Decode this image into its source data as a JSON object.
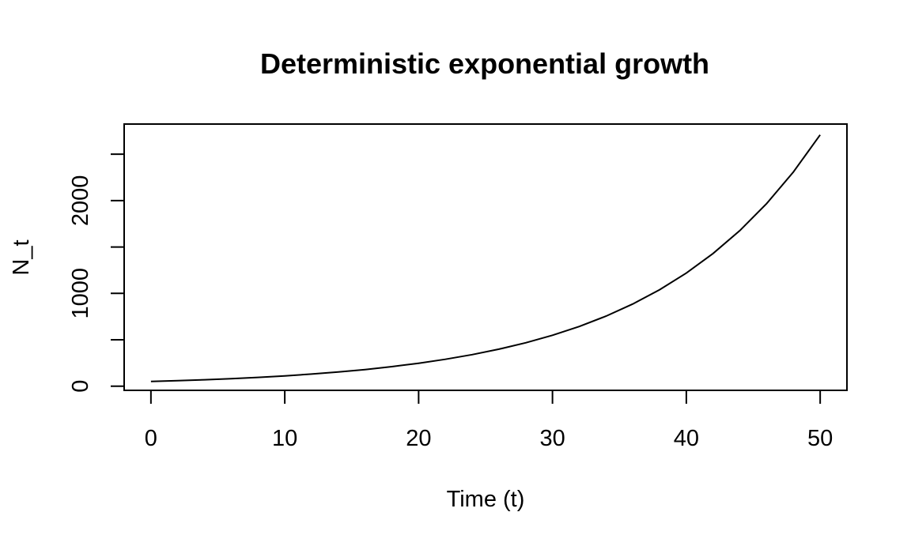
{
  "chart_data": {
    "type": "line",
    "title": "Deterministic exponential growth",
    "xlabel": "Time (t)",
    "ylabel": "N_t",
    "xlim": [
      -2,
      52
    ],
    "ylim": [
      -45,
      2825
    ],
    "x_ticks": [
      0,
      10,
      20,
      30,
      40,
      50
    ],
    "x_tick_labels": [
      "0",
      "10",
      "20",
      "30",
      "40",
      "50"
    ],
    "y_ticks": [
      0,
      500,
      1000,
      1500,
      2000,
      2500
    ],
    "y_tick_labels": [
      "0",
      "",
      "1000",
      "",
      "2000",
      ""
    ],
    "grid": false,
    "legend": false,
    "series": [
      {
        "color": "#000000",
        "x": [
          0,
          2,
          4,
          6,
          8,
          10,
          12,
          14,
          16,
          18,
          20,
          22,
          24,
          26,
          28,
          30,
          32,
          34,
          36,
          38,
          40,
          42,
          44,
          46,
          48,
          50
        ],
        "y": [
          50,
          58.7,
          68.8,
          80.7,
          94.7,
          111.1,
          130.3,
          152.9,
          179.4,
          210.4,
          246.8,
          289.6,
          339.7,
          398.5,
          467.5,
          548.5,
          643.4,
          754.8,
          885.5,
          1038.9,
          1218.8,
          1429.8,
          1677.4,
          1967.8,
          2308.5,
          2708.3
        ]
      }
    ]
  }
}
